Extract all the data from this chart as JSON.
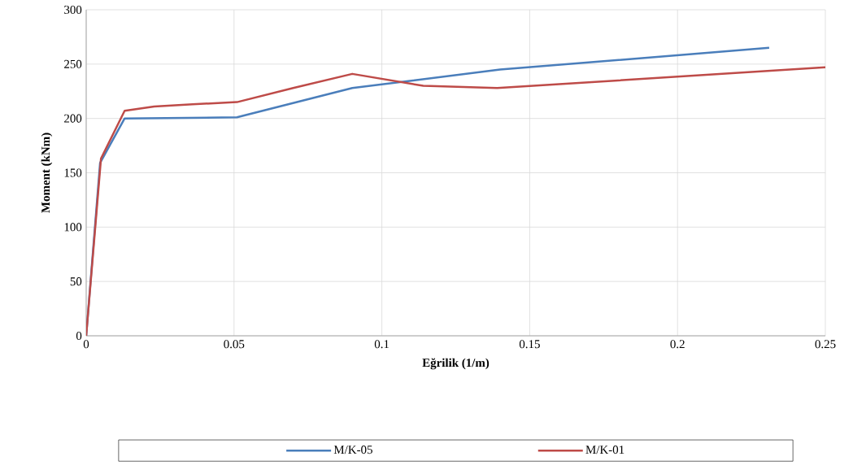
{
  "chart_data": {
    "type": "line",
    "xlabel": "Eğrilik (1/m)",
    "ylabel": "Moment (kNm)",
    "xlim": [
      0,
      0.25
    ],
    "ylim": [
      0,
      300
    ],
    "xticks": [
      0,
      0.05,
      0.1,
      0.15,
      0.2,
      0.25
    ],
    "yticks": [
      0,
      50,
      100,
      150,
      200,
      250,
      300
    ],
    "grid": true,
    "legend": "bottom",
    "marker": "none",
    "line_style": "solid",
    "series": [
      {
        "name": "M/K-05",
        "color": "#4a7ebb",
        "x": [
          0,
          0.0047,
          0.013,
          0.051,
          0.09,
          0.14,
          0.231
        ],
        "values": [
          0,
          159,
          200,
          201,
          228,
          245,
          265
        ]
      },
      {
        "name": "M/K-01",
        "color": "#be4b48",
        "x": [
          0,
          0.005,
          0.013,
          0.023,
          0.036,
          0.051,
          0.07,
          0.09,
          0.114,
          0.139,
          0.25
        ],
        "values": [
          0,
          163,
          207,
          211,
          213,
          215,
          228,
          241,
          230,
          228,
          247
        ]
      }
    ]
  }
}
